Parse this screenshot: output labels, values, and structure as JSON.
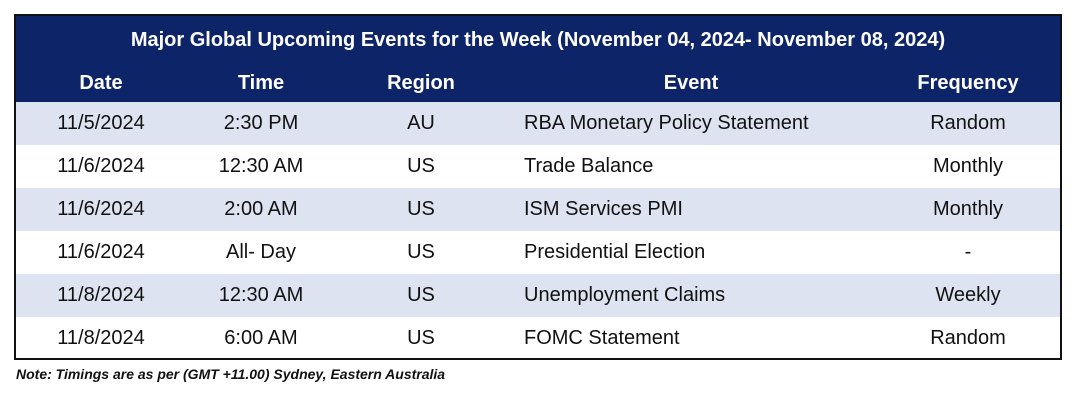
{
  "title": "Major Global Upcoming Events for the Week (November 04, 2024- November 08, 2024)",
  "headers": {
    "date": "Date",
    "time": "Time",
    "region": "Region",
    "event": "Event",
    "frequency": "Frequency"
  },
  "rows": [
    {
      "date": "11/5/2024",
      "time": "2:30 PM",
      "region": "AU",
      "event": "RBA Monetary Policy Statement",
      "frequency": "Random"
    },
    {
      "date": "11/6/2024",
      "time": "12:30 AM",
      "region": "US",
      "event": "Trade Balance",
      "frequency": "Monthly"
    },
    {
      "date": "11/6/2024",
      "time": "2:00 AM",
      "region": "US",
      "event": "ISM Services PMI",
      "frequency": "Monthly"
    },
    {
      "date": "11/6/2024",
      "time": "All- Day",
      "region": "US",
      "event": "Presidential Election",
      "frequency": "-"
    },
    {
      "date": "11/8/2024",
      "time": "12:30 AM",
      "region": "US",
      "event": "Unemployment Claims",
      "frequency": "Weekly"
    },
    {
      "date": "11/8/2024",
      "time": "6:00 AM",
      "region": "US",
      "event": "FOMC Statement",
      "frequency": "Random"
    }
  ],
  "note": "Note: Timings are as per (GMT +11.00) Sydney, Eastern Australia",
  "colors": {
    "header_bg": "#0e2469",
    "alt_row_bg": "#dde3f0"
  }
}
